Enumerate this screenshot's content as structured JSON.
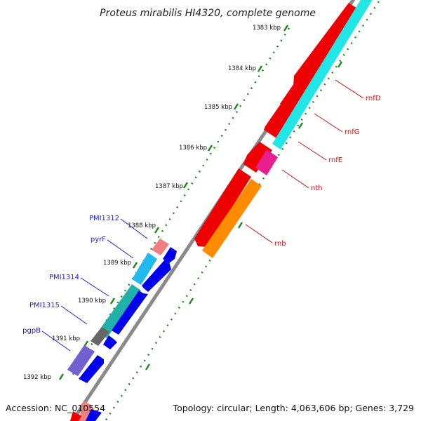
{
  "title": "Proteus mirabilis HI4320, complete genome",
  "footer": {
    "accession": "Accession: NC_010554",
    "topology": "Topology: circular; Length: 4,063,606 bp; Genes: 3,729"
  },
  "scale_labels": [
    "1383 kbp",
    "1384 kbp",
    "1385 kbp",
    "1386 kbp",
    "1387 kbp",
    "1388 kbp",
    "1389 kbp",
    "1390 kbp",
    "1391 kbp",
    "1392 kbp"
  ],
  "genes_forward": [
    "PMI1312",
    "pyrF",
    "PMI1314",
    "PMI1315",
    "pgpB"
  ],
  "genes_reverse": [
    "rnfD",
    "rnfG",
    "rnfE",
    "nth",
    "rnb"
  ],
  "colors": {
    "backbone": "#8a8a8a",
    "scale_dots": "#1e8a1e",
    "cds_forward": "#0000ee",
    "cds_reverse": "#ee0000",
    "cyan": "#22e5e5",
    "teal": "#20b2aa",
    "sky": "#22b8f0",
    "pink": "#f07f80",
    "magenta": "#e8208f",
    "orange": "#ff8c00",
    "slate": "#7060d0",
    "gray": "#666666"
  }
}
